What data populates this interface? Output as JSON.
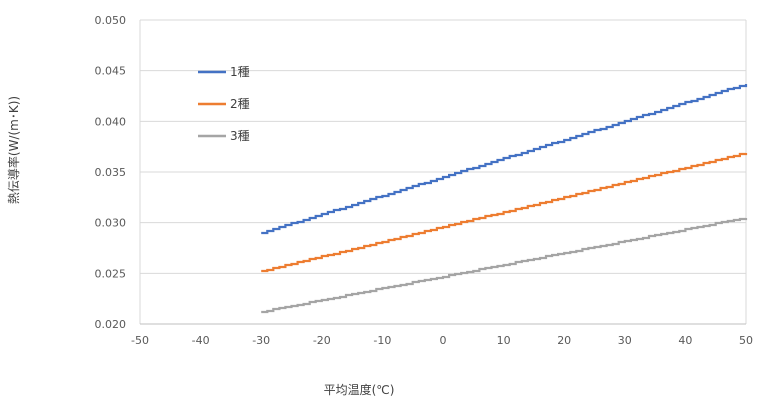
{
  "chart_data": {
    "type": "line",
    "title": "",
    "xlabel": "平均温度(℃)",
    "ylabel": "熱伝導率(W/(m･K))",
    "xlim": [
      -50,
      50
    ],
    "ylim": [
      0.02,
      0.05
    ],
    "xticks": [
      -50,
      -40,
      -30,
      -20,
      -10,
      0,
      10,
      20,
      30,
      40,
      50
    ],
    "yticks": [
      0.02,
      0.025,
      0.03,
      0.035,
      0.04,
      0.045,
      0.05
    ],
    "xtick_labels": [
      "-50",
      "-40",
      "-30",
      "-20",
      "-10",
      "0",
      "10",
      "20",
      "30",
      "40",
      "50"
    ],
    "ytick_labels": [
      "0.020",
      "0.025",
      "0.030",
      "0.035",
      "0.040",
      "0.045",
      "0.050"
    ],
    "grid": "horizontal",
    "legend_position": "top-left",
    "x": [
      -30,
      50
    ],
    "series": [
      {
        "name": "1種",
        "color": "#4472C4",
        "values": [
          0.029,
          0.0437
        ]
      },
      {
        "name": "2種",
        "color": "#ED7D31",
        "values": [
          0.0252,
          0.0369
        ]
      },
      {
        "name": "3種",
        "color": "#A5A5A5",
        "values": [
          0.0212,
          0.0305
        ]
      }
    ]
  }
}
